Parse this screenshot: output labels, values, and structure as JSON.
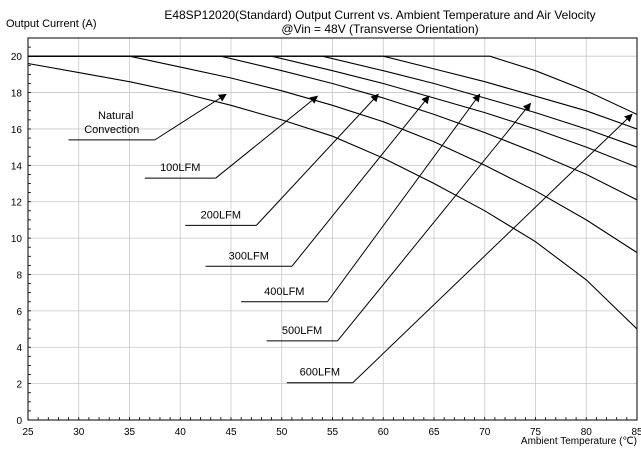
{
  "chart_data": {
    "type": "line",
    "title": "E48SP12020(Standard)  Output Current vs. Ambient Temperature and Air Velocity",
    "subtitle": "@Vin = 48V (Transverse Orientation)",
    "ylabel": "Output Current (A)",
    "xlabel": "Ambient Temperature (℃)",
    "xlim": [
      25,
      85
    ],
    "ylim": [
      0,
      21
    ],
    "xticks": [
      25,
      30,
      35,
      40,
      45,
      50,
      55,
      60,
      65,
      70,
      75,
      80,
      85
    ],
    "yticks": [
      0,
      2,
      4,
      6,
      8,
      10,
      12,
      14,
      16,
      18,
      20
    ],
    "grid": true,
    "series": [
      {
        "name": "Natural Convection",
        "x": [
          25,
          30,
          35,
          40,
          45,
          50,
          55,
          60,
          65,
          70,
          75,
          80,
          85
        ],
        "y": [
          19.6,
          19.1,
          18.6,
          18.0,
          17.3,
          16.5,
          15.6,
          14.4,
          13.0,
          11.5,
          9.8,
          7.7,
          5.0
        ]
      },
      {
        "name": "100LFM",
        "x": [
          25,
          35,
          40,
          45,
          50,
          55,
          60,
          65,
          70,
          75,
          80,
          85
        ],
        "y": [
          20,
          20,
          19.4,
          18.8,
          18.1,
          17.3,
          16.4,
          15.3,
          14.0,
          12.6,
          11.0,
          9.2
        ]
      },
      {
        "name": "200LFM",
        "x": [
          25,
          44,
          50,
          55,
          60,
          65,
          70,
          75,
          80,
          85
        ],
        "y": [
          20,
          20,
          19.2,
          18.5,
          17.7,
          16.8,
          15.8,
          14.7,
          13.5,
          12.1
        ]
      },
      {
        "name": "300LFM",
        "x": [
          25,
          49,
          55,
          60,
          65,
          70,
          75,
          80,
          85
        ],
        "y": [
          20,
          20,
          19.2,
          18.5,
          17.7,
          16.9,
          16.0,
          15.0,
          13.9
        ]
      },
      {
        "name": "400LFM",
        "x": [
          25,
          54,
          60,
          65,
          70,
          75,
          80,
          85
        ],
        "y": [
          20,
          20,
          19.2,
          18.5,
          17.7,
          16.9,
          16.0,
          15.0
        ]
      },
      {
        "name": "500LFM",
        "x": [
          25,
          60,
          65,
          70,
          75,
          80,
          85
        ],
        "y": [
          20,
          20,
          19.3,
          18.6,
          17.8,
          17.0,
          16.0
        ]
      },
      {
        "name": "600LFM",
        "x": [
          25,
          70.5,
          75,
          80,
          85
        ],
        "y": [
          20,
          20,
          19.2,
          18.1,
          16.8
        ]
      }
    ],
    "annotations": [
      {
        "text": "Natural",
        "text2": "Convection",
        "from": [
          29,
          15.4
        ],
        "to": [
          37.5,
          15.4
        ],
        "arrow_to": [
          44.5,
          17.9
        ]
      },
      {
        "text": "100LFM",
        "from": [
          36.5,
          13.3
        ],
        "to": [
          43.5,
          13.3
        ],
        "arrow_to": [
          53.5,
          17.8
        ]
      },
      {
        "text": "200LFM",
        "from": [
          40.5,
          10.7
        ],
        "to": [
          47.5,
          10.7
        ],
        "arrow_to": [
          59.5,
          17.9
        ]
      },
      {
        "text": "300LFM",
        "from": [
          42.5,
          8.45
        ],
        "to": [
          51,
          8.45
        ],
        "arrow_to": [
          64.5,
          17.8
        ]
      },
      {
        "text": "400LFM",
        "from": [
          46,
          6.5
        ],
        "to": [
          54.5,
          6.5
        ],
        "arrow_to": [
          69.5,
          17.9
        ]
      },
      {
        "text": "500LFM",
        "from": [
          48.5,
          4.35
        ],
        "to": [
          55.5,
          4.35
        ],
        "arrow_to": [
          74.5,
          17.4
        ]
      },
      {
        "text": "600LFM",
        "from": [
          50.5,
          2.05
        ],
        "to": [
          57,
          2.05
        ],
        "arrow_to": [
          84.5,
          16.8
        ]
      }
    ]
  }
}
